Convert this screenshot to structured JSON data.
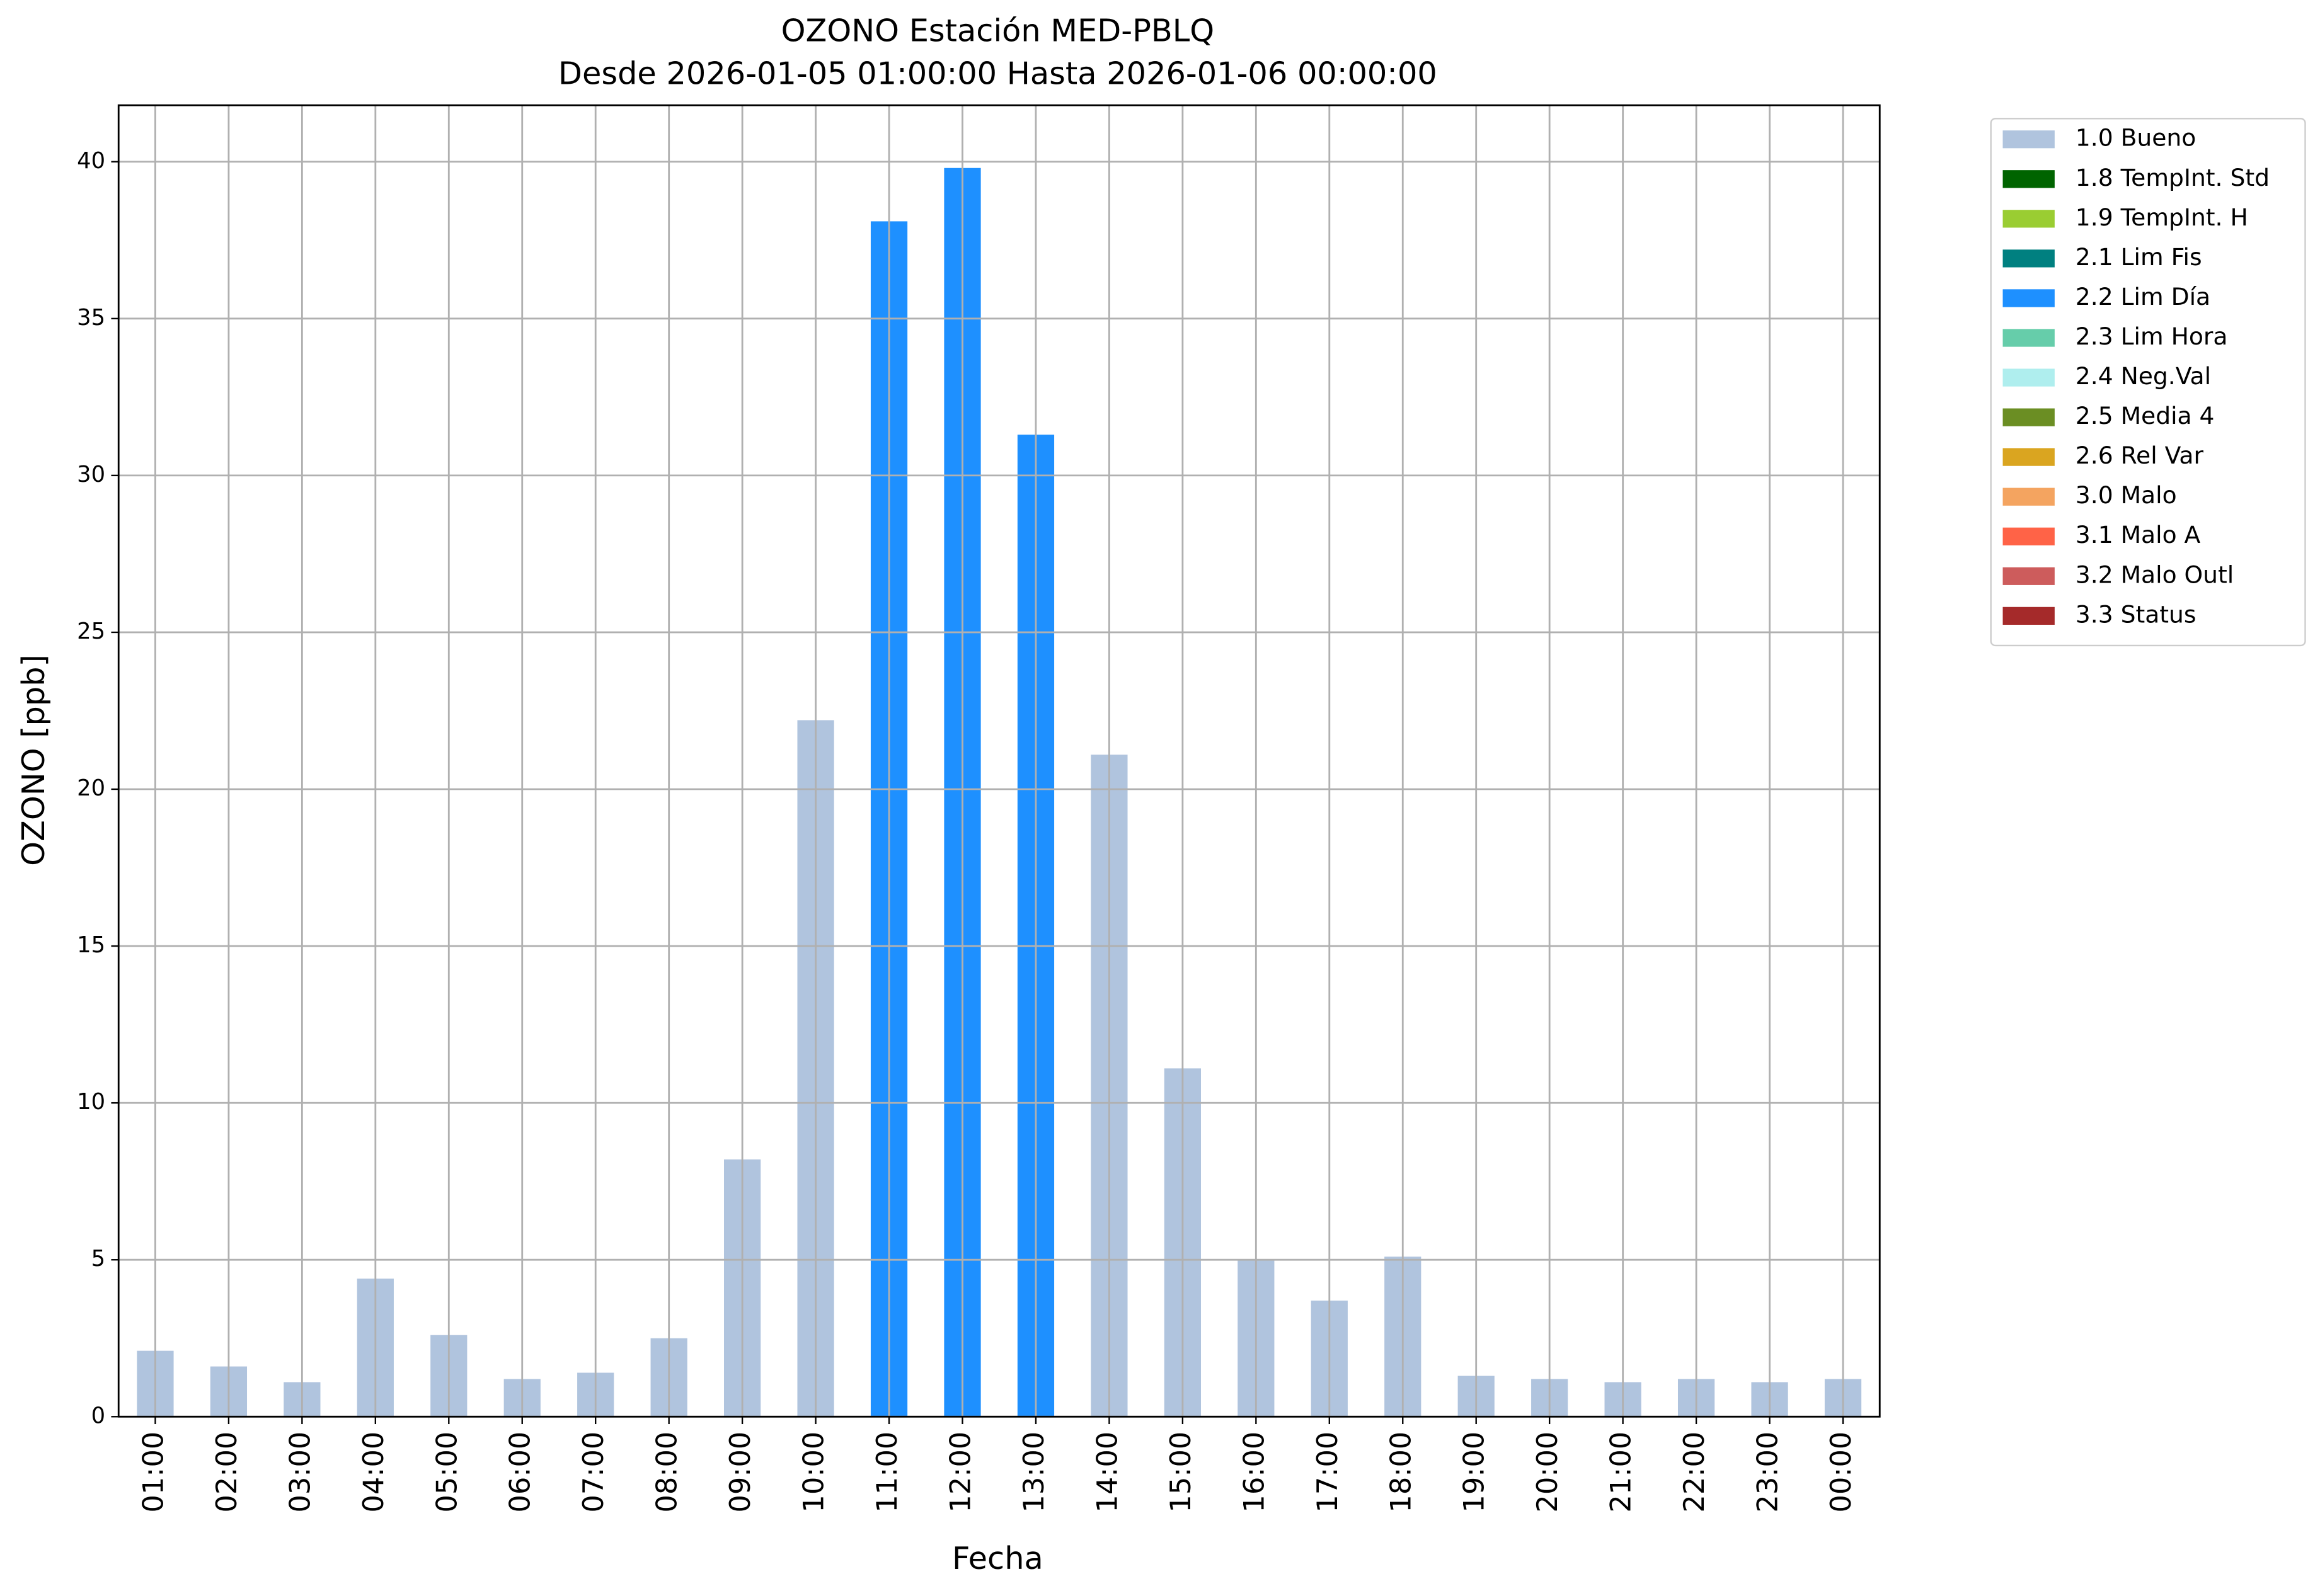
{
  "chart_data": {
    "type": "bar",
    "stacked": true,
    "title": "OZONO Estación MED-PBLQ",
    "subtitle": "Desde 2026-01-05 01:00:00 Hasta 2026-01-06 00:00:00",
    "xlabel": "Fecha",
    "ylabel": "OZONO [ppb]",
    "categories": [
      "01:00",
      "02:00",
      "03:00",
      "04:00",
      "05:00",
      "06:00",
      "07:00",
      "08:00",
      "09:00",
      "10:00",
      "11:00",
      "12:00",
      "13:00",
      "14:00",
      "15:00",
      "16:00",
      "17:00",
      "18:00",
      "19:00",
      "20:00",
      "21:00",
      "22:00",
      "23:00",
      "00:00"
    ],
    "series": [
      {
        "name": "1.0 Bueno",
        "color": "#b0c4de",
        "values": [
          2.1,
          1.6,
          1.1,
          4.4,
          2.6,
          1.2,
          1.4,
          2.5,
          8.2,
          22.2,
          null,
          null,
          null,
          21.1,
          11.1,
          5.0,
          3.7,
          5.1,
          1.3,
          1.2,
          1.1,
          1.2,
          1.1,
          1.2
        ]
      },
      {
        "name": "1.8 TempInt. Std",
        "color": "#006400",
        "values": [
          null,
          null,
          null,
          null,
          null,
          null,
          null,
          null,
          null,
          null,
          null,
          null,
          null,
          null,
          null,
          null,
          null,
          null,
          null,
          null,
          null,
          null,
          null,
          null
        ]
      },
      {
        "name": "1.9 TempInt. H",
        "color": "#9acd32",
        "values": [
          null,
          null,
          null,
          null,
          null,
          null,
          null,
          null,
          null,
          null,
          null,
          null,
          null,
          null,
          null,
          null,
          null,
          null,
          null,
          null,
          null,
          null,
          null,
          null
        ]
      },
      {
        "name": "2.1 Lim Fis",
        "color": "#008080",
        "values": [
          null,
          null,
          null,
          null,
          null,
          null,
          null,
          null,
          null,
          null,
          null,
          null,
          null,
          null,
          null,
          null,
          null,
          null,
          null,
          null,
          null,
          null,
          null,
          null
        ]
      },
      {
        "name": "2.2 Lim Día",
        "color": "#1e90ff",
        "values": [
          null,
          null,
          null,
          null,
          null,
          null,
          null,
          null,
          null,
          null,
          38.1,
          39.8,
          31.3,
          null,
          null,
          null,
          null,
          null,
          null,
          null,
          null,
          null,
          null,
          null
        ]
      },
      {
        "name": "2.3 Lim Hora",
        "color": "#66cdaa",
        "values": [
          null,
          null,
          null,
          null,
          null,
          null,
          null,
          null,
          null,
          null,
          null,
          null,
          null,
          null,
          null,
          null,
          null,
          null,
          null,
          null,
          null,
          null,
          null,
          null
        ]
      },
      {
        "name": "2.4 Neg.Val",
        "color": "#afeeee",
        "values": [
          null,
          null,
          null,
          null,
          null,
          null,
          null,
          null,
          null,
          null,
          null,
          null,
          null,
          null,
          null,
          null,
          null,
          null,
          null,
          null,
          null,
          null,
          null,
          null
        ]
      },
      {
        "name": "2.5 Media 4",
        "color": "#6b8e23",
        "values": [
          null,
          null,
          null,
          null,
          null,
          null,
          null,
          null,
          null,
          null,
          null,
          null,
          null,
          null,
          null,
          null,
          null,
          null,
          null,
          null,
          null,
          null,
          null,
          null
        ]
      },
      {
        "name": "2.6 Rel Var",
        "color": "#daa520",
        "values": [
          null,
          null,
          null,
          null,
          null,
          null,
          null,
          null,
          null,
          null,
          null,
          null,
          null,
          null,
          null,
          null,
          null,
          null,
          null,
          null,
          null,
          null,
          null,
          null
        ]
      },
      {
        "name": "3.0 Malo",
        "color": "#f4a460",
        "values": [
          null,
          null,
          null,
          null,
          null,
          null,
          null,
          null,
          null,
          null,
          null,
          null,
          null,
          null,
          null,
          null,
          null,
          null,
          null,
          null,
          null,
          null,
          null,
          null
        ]
      },
      {
        "name": "3.1 Malo A",
        "color": "#ff6347",
        "values": [
          null,
          null,
          null,
          null,
          null,
          null,
          null,
          null,
          null,
          null,
          null,
          null,
          null,
          null,
          null,
          null,
          null,
          null,
          null,
          null,
          null,
          null,
          null,
          null
        ]
      },
      {
        "name": "3.2 Malo Outl",
        "color": "#cd5c5c",
        "values": [
          null,
          null,
          null,
          null,
          null,
          null,
          null,
          null,
          null,
          null,
          null,
          null,
          null,
          null,
          null,
          null,
          null,
          null,
          null,
          null,
          null,
          null,
          null,
          null
        ]
      },
      {
        "name": "3.3 Status",
        "color": "#a52a2a",
        "values": [
          null,
          null,
          null,
          null,
          null,
          null,
          null,
          null,
          null,
          null,
          null,
          null,
          null,
          null,
          null,
          null,
          null,
          null,
          null,
          null,
          null,
          null,
          null,
          null
        ]
      }
    ],
    "ylim": [
      0,
      41.8
    ],
    "yticks": [
      0,
      5,
      10,
      15,
      20,
      25,
      30,
      35,
      40
    ],
    "grid": true,
    "legend": "outside upper right"
  }
}
